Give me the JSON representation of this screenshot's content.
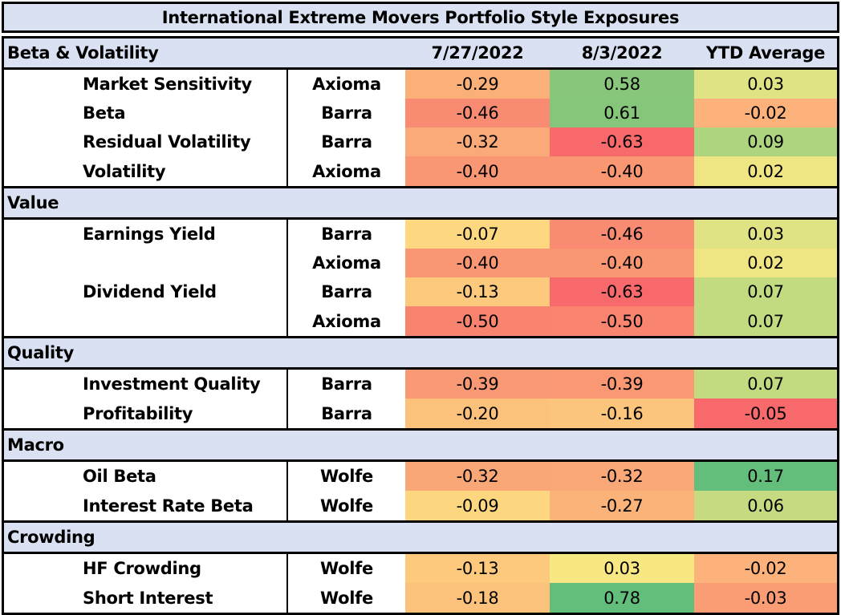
{
  "title": "International Extreme Movers Portfolio Style Exposures",
  "columns": [
    "7/27/2022",
    "8/3/2022",
    "YTD Average"
  ],
  "colors": {
    "header_bg": "#d9e1f2",
    "border": "#000000"
  },
  "sections": [
    {
      "name": "Beta & Volatility",
      "rows": [
        {
          "factor": "Market Sensitivity",
          "source": "Axioma",
          "values": [
            "-0.29",
            "0.58",
            "0.03"
          ],
          "colors": [
            "#fbaf79",
            "#88c77b",
            "#e0e383"
          ]
        },
        {
          "factor": "Beta",
          "source": "Barra",
          "values": [
            "-0.46",
            "0.61",
            "-0.02"
          ],
          "colors": [
            "#f98b72",
            "#86c67b",
            "#fcb27a"
          ]
        },
        {
          "factor": "Residual Volatility",
          "source": "Barra",
          "values": [
            "-0.32",
            "-0.63",
            "0.09"
          ],
          "colors": [
            "#faa979",
            "#f8696b",
            "#add57f"
          ]
        },
        {
          "factor": "Volatility",
          "source": "Axioma",
          "values": [
            "-0.40",
            "-0.40",
            "0.02"
          ],
          "colors": [
            "#f99673",
            "#fa9773",
            "#efe683"
          ]
        }
      ]
    },
    {
      "name": "Value",
      "rows": [
        {
          "factor": "Earnings Yield",
          "source": "Barra",
          "values": [
            "-0.07",
            "-0.46",
            "0.03"
          ],
          "colors": [
            "#fdd880",
            "#f98b72",
            "#e0e383"
          ]
        },
        {
          "factor": "",
          "source": "Axioma",
          "values": [
            "-0.40",
            "-0.40",
            "0.02"
          ],
          "colors": [
            "#f99673",
            "#fa9773",
            "#efe683"
          ]
        },
        {
          "factor": "Dividend Yield",
          "source": "Barra",
          "values": [
            "-0.13",
            "-0.63",
            "0.07"
          ],
          "colors": [
            "#fcc97d",
            "#f8696b",
            "#c2da80"
          ]
        },
        {
          "factor": "",
          "source": "Axioma",
          "values": [
            "-0.50",
            "-0.50",
            "0.07"
          ],
          "colors": [
            "#f8836f",
            "#f98470",
            "#c2da80"
          ]
        }
      ]
    },
    {
      "name": "Quality",
      "rows": [
        {
          "factor": "Investment Quality",
          "source": "Barra",
          "values": [
            "-0.39",
            "-0.39",
            "0.07"
          ],
          "colors": [
            "#f99874",
            "#fa9874",
            "#c2da80"
          ]
        },
        {
          "factor": "Profitability",
          "source": "Barra",
          "values": [
            "-0.20",
            "-0.16",
            "-0.05"
          ],
          "colors": [
            "#fcc27c",
            "#fcc57c",
            "#f8696b"
          ]
        }
      ]
    },
    {
      "name": "Macro",
      "rows": [
        {
          "factor": "Oil Beta",
          "source": "Wolfe",
          "values": [
            "-0.32",
            "-0.32",
            "0.17"
          ],
          "colors": [
            "#faa777",
            "#faa878",
            "#63be7b"
          ]
        },
        {
          "factor": "Interest Rate Beta",
          "source": "Wolfe",
          "values": [
            "-0.09",
            "-0.27",
            "0.06"
          ],
          "colors": [
            "#fdd680",
            "#fbb37a",
            "#c6db81"
          ]
        }
      ]
    },
    {
      "name": "Crowding",
      "rows": [
        {
          "factor": "HF Crowding",
          "source": "Wolfe",
          "values": [
            "-0.13",
            "0.03",
            "-0.02"
          ],
          "colors": [
            "#fcc97d",
            "#f8e884",
            "#fcb27a"
          ]
        },
        {
          "factor": "Short Interest",
          "source": "Wolfe",
          "values": [
            "-0.18",
            "0.78",
            "-0.03"
          ],
          "colors": [
            "#fcc27c",
            "#63be7b",
            "#fa9d75"
          ]
        }
      ]
    }
  ]
}
